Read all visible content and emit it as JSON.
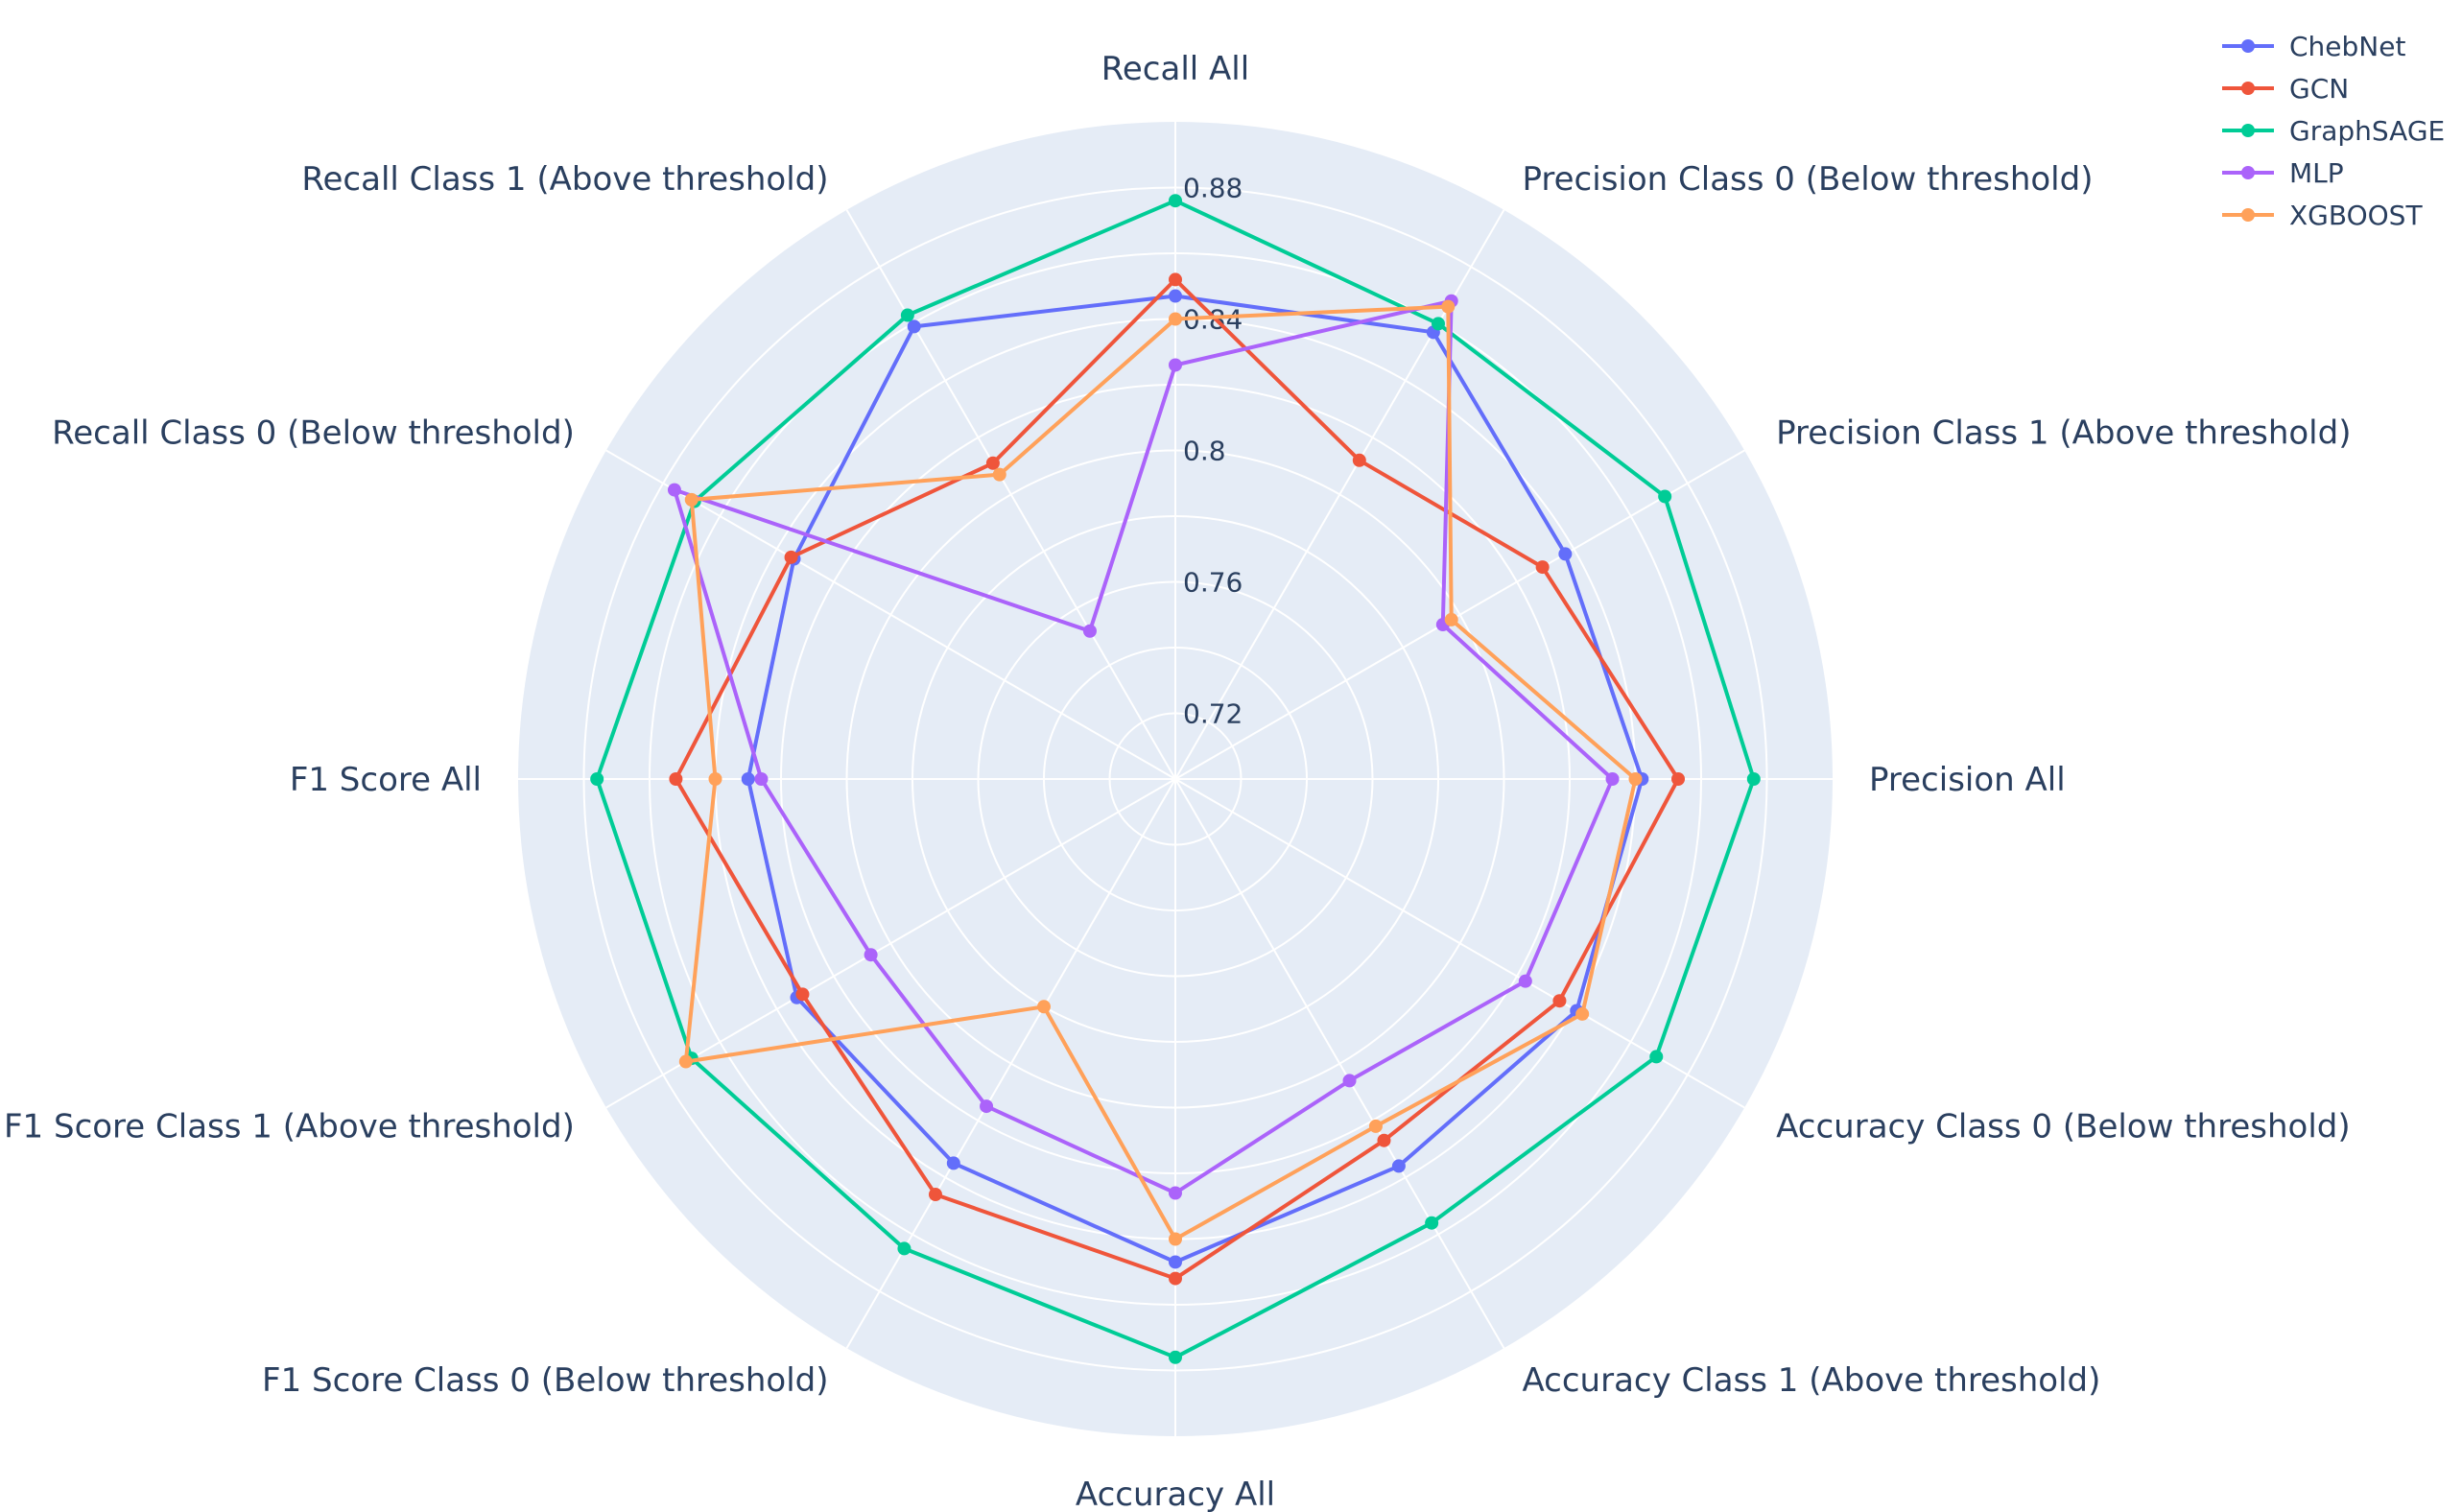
{
  "chart_data": {
    "type": "radar",
    "title": "",
    "axes": [
      "Recall All",
      "Precision Class 0 (Below threshold)",
      "Precision Class 1 (Above threshold)",
      "Precision All",
      "Accuracy Class 0 (Below threshold)",
      "Accuracy Class 1 (Above threshold)",
      "Accuracy All",
      "F1 Score Class 0 (Below threshold)",
      "F1 Score Class 1 (Above threshold)",
      "F1 Score All",
      "Recall Class 0 (Below threshold)",
      "Recall Class 1 (Above threshold)"
    ],
    "radial_range": [
      0.7,
      0.9
    ],
    "radial_ticks": [
      0.72,
      0.76,
      0.8,
      0.84,
      0.88
    ],
    "radial_tick_labels": [
      "0.72",
      "0.76",
      "0.8",
      "0.84",
      "0.88"
    ],
    "grid": true,
    "legend_position": "top-right",
    "series": [
      {
        "name": "ChebNet",
        "color": "#636efa",
        "values": [
          0.847,
          0.857,
          0.837,
          0.842,
          0.841,
          0.836,
          0.847,
          0.835,
          0.833,
          0.83,
          0.834,
          0.859
        ]
      },
      {
        "name": "GCN",
        "color": "#ef553b",
        "values": [
          0.852,
          0.812,
          0.829,
          0.853,
          0.835,
          0.827,
          0.852,
          0.846,
          0.831,
          0.852,
          0.835,
          0.811
        ]
      },
      {
        "name": "GraphSAGE",
        "color": "#00cc96",
        "values": [
          0.876,
          0.86,
          0.872,
          0.876,
          0.869,
          0.856,
          0.876,
          0.865,
          0.87,
          0.876,
          0.869,
          0.863
        ]
      },
      {
        "name": "MLP",
        "color": "#ab63fa",
        "values": [
          0.826,
          0.868,
          0.794,
          0.833,
          0.823,
          0.806,
          0.826,
          0.815,
          0.807,
          0.826,
          0.876,
          0.752
        ]
      },
      {
        "name": "XGBOOST",
        "color": "#ffa15a",
        "values": [
          0.84,
          0.866,
          0.797,
          0.84,
          0.843,
          0.822,
          0.84,
          0.78,
          0.872,
          0.84,
          0.87,
          0.807
        ]
      }
    ]
  }
}
